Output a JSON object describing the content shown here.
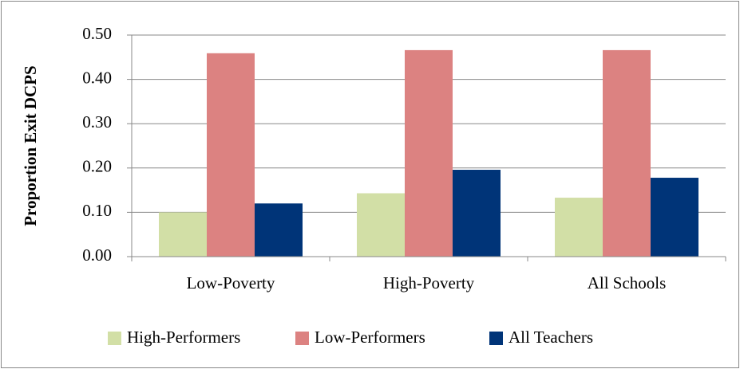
{
  "chart_data": {
    "type": "bar",
    "y_label": "Proportion Exit DCPS",
    "categories": [
      "Low-Poverty",
      "High-Poverty",
      "All Schools"
    ],
    "series": [
      {
        "name": "High-Performers",
        "color": "#d2dfa6",
        "values": [
          0.1,
          0.143,
          0.133
        ]
      },
      {
        "name": "Low-Performers",
        "color": "#dc8281",
        "values": [
          0.459,
          0.466,
          0.466
        ]
      },
      {
        "name": "All Teachers",
        "color": "#003478",
        "values": [
          0.12,
          0.196,
          0.178
        ]
      }
    ],
    "ylim": [
      0,
      0.5
    ],
    "yticks": [
      {
        "value": 0,
        "label": "0.00"
      },
      {
        "value": 0.1,
        "label": "0.10"
      },
      {
        "value": 0.2,
        "label": "0.20"
      },
      {
        "value": 0.3,
        "label": "0.30"
      },
      {
        "value": 0.4,
        "label": "0.40"
      },
      {
        "value": 0.5,
        "label": "0.50"
      }
    ],
    "grid": true,
    "legend": "bottom"
  }
}
